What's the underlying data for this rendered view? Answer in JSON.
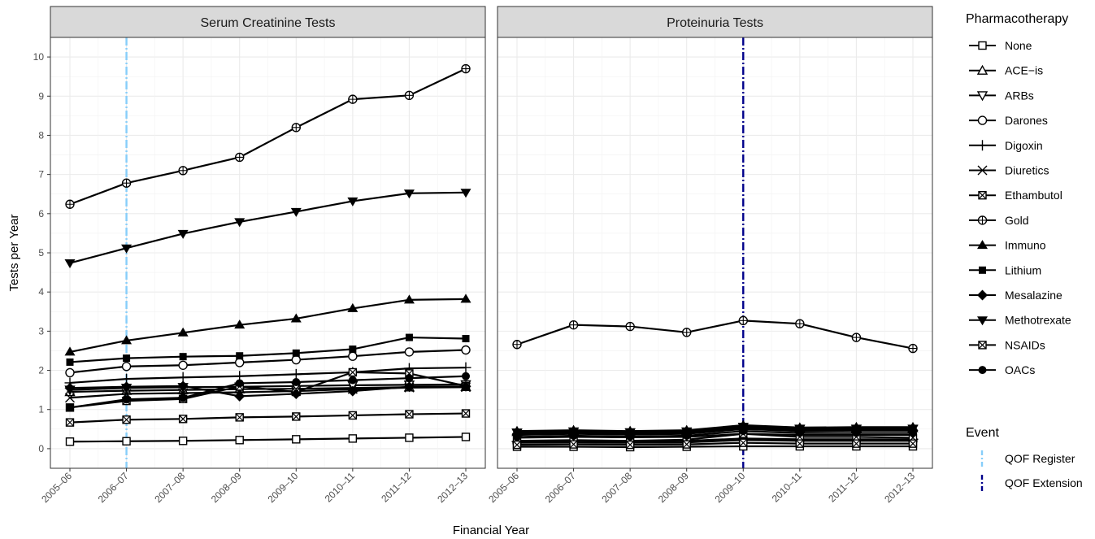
{
  "figure": {
    "ylabel": "Tests per Year",
    "xlabel": "Financial Year",
    "legend_title": "Pharmacotherapy",
    "event_title": "Event"
  },
  "x_categories": [
    "2005–06",
    "2006–07",
    "2007–08",
    "2008–09",
    "2009–10",
    "2010–11",
    "2011–12",
    "2012–13"
  ],
  "y_ticks": [
    0,
    1,
    2,
    3,
    4,
    5,
    6,
    7,
    8,
    9,
    10
  ],
  "ylim": [
    -0.5,
    10.5
  ],
  "colors": {
    "register": "#87CEFA",
    "extension": "#00008B",
    "strip": "#D9D9D9",
    "grid": "#EBEBEB",
    "line": "#000000"
  },
  "legend": [
    {
      "name": "None",
      "shape": "open-square"
    },
    {
      "name": "ACE−is",
      "shape": "open-triangle-up"
    },
    {
      "name": "ARBs",
      "shape": "open-triangle-down"
    },
    {
      "name": "Darones",
      "shape": "open-circle"
    },
    {
      "name": "Digoxin",
      "shape": "plus"
    },
    {
      "name": "Diuretics",
      "shape": "cross"
    },
    {
      "name": "Ethambutol",
      "shape": "square-cross"
    },
    {
      "name": "Gold",
      "shape": "circle-plus"
    },
    {
      "name": "Immuno",
      "shape": "filled-triangle-up"
    },
    {
      "name": "Lithium",
      "shape": "filled-square"
    },
    {
      "name": "Mesalazine",
      "shape": "filled-diamond"
    },
    {
      "name": "Methotrexate",
      "shape": "filled-triangle-down"
    },
    {
      "name": "NSAIDs",
      "shape": "square-x"
    },
    {
      "name": "OACs",
      "shape": "filled-circle"
    }
  ],
  "events": [
    {
      "name": "QOF Register",
      "color": "#87CEFA",
      "panel": 0,
      "x": "2006–07"
    },
    {
      "name": "QOF Extension",
      "color": "#00008B",
      "panel": 1,
      "x": "2009–10"
    }
  ],
  "chart_data": [
    {
      "type": "line",
      "title": "Serum Creatinine Tests",
      "series": [
        {
          "name": "None",
          "values": [
            0.18,
            0.19,
            0.2,
            0.22,
            0.24,
            0.26,
            0.28,
            0.3
          ]
        },
        {
          "name": "ACE−is",
          "values": [
            1.45,
            1.48,
            1.5,
            1.52,
            1.53,
            1.55,
            1.57,
            1.58
          ]
        },
        {
          "name": "ARBs",
          "values": [
            1.5,
            1.55,
            1.57,
            1.58,
            1.6,
            1.62,
            1.63,
            1.64
          ]
        },
        {
          "name": "Darones",
          "values": [
            1.94,
            2.1,
            2.13,
            2.2,
            2.27,
            2.36,
            2.47,
            2.52
          ]
        },
        {
          "name": "Digoxin",
          "values": [
            1.68,
            1.78,
            1.82,
            1.85,
            1.9,
            1.95,
            2.05,
            2.07
          ]
        },
        {
          "name": "Diuretics",
          "values": [
            1.3,
            1.4,
            1.42,
            1.44,
            1.47,
            1.52,
            1.56,
            1.57
          ]
        },
        {
          "name": "Ethambutol",
          "values": [
            1.05,
            1.22,
            1.27,
            1.59,
            1.45,
            1.95,
            1.92,
            1.6
          ]
        },
        {
          "name": "Gold",
          "values": [
            6.24,
            6.78,
            7.1,
            7.44,
            8.2,
            8.92,
            9.02,
            9.7
          ]
        },
        {
          "name": "Immuno",
          "values": [
            2.47,
            2.76,
            2.96,
            3.16,
            3.32,
            3.58,
            3.8,
            3.82
          ]
        },
        {
          "name": "Lithium",
          "values": [
            2.21,
            2.31,
            2.35,
            2.37,
            2.44,
            2.54,
            2.84,
            2.81
          ]
        },
        {
          "name": "Mesalazine",
          "values": [
            1.55,
            1.58,
            1.6,
            1.34,
            1.4,
            1.47,
            1.58,
            1.59
          ]
        },
        {
          "name": "Methotrexate",
          "values": [
            4.74,
            5.12,
            5.49,
            5.79,
            6.05,
            6.32,
            6.52,
            6.54
          ]
        },
        {
          "name": "NSAIDs",
          "values": [
            0.67,
            0.74,
            0.76,
            0.8,
            0.82,
            0.85,
            0.88,
            0.9
          ]
        },
        {
          "name": "OACs",
          "values": [
            1.05,
            1.26,
            1.3,
            1.67,
            1.7,
            1.75,
            1.8,
            1.85
          ]
        }
      ]
    },
    {
      "type": "line",
      "title": "Proteinuria Tests",
      "series": [
        {
          "name": "None",
          "values": [
            0.05,
            0.05,
            0.04,
            0.05,
            0.06,
            0.06,
            0.06,
            0.06
          ]
        },
        {
          "name": "ACE−is",
          "values": [
            0.43,
            0.46,
            0.44,
            0.46,
            0.58,
            0.52,
            0.53,
            0.53
          ]
        },
        {
          "name": "ARBs",
          "values": [
            0.4,
            0.43,
            0.41,
            0.43,
            0.55,
            0.5,
            0.5,
            0.5
          ]
        },
        {
          "name": "Darones",
          "values": [
            0.15,
            0.16,
            0.15,
            0.16,
            0.22,
            0.2,
            0.2,
            0.2
          ]
        },
        {
          "name": "Digoxin",
          "values": [
            0.18,
            0.2,
            0.19,
            0.2,
            0.26,
            0.24,
            0.24,
            0.24
          ]
        },
        {
          "name": "Diuretics",
          "values": [
            0.28,
            0.3,
            0.29,
            0.3,
            0.38,
            0.35,
            0.35,
            0.35
          ]
        },
        {
          "name": "Ethambutol",
          "values": [
            0.2,
            0.22,
            0.2,
            0.23,
            0.38,
            0.3,
            0.3,
            0.28
          ]
        },
        {
          "name": "Gold",
          "values": [
            2.66,
            3.16,
            3.12,
            2.97,
            3.27,
            3.19,
            2.84,
            2.56
          ]
        },
        {
          "name": "Immuno",
          "values": [
            0.45,
            0.47,
            0.45,
            0.47,
            0.6,
            0.54,
            0.55,
            0.55
          ]
        },
        {
          "name": "Lithium",
          "values": [
            0.38,
            0.4,
            0.39,
            0.4,
            0.52,
            0.47,
            0.47,
            0.47
          ]
        },
        {
          "name": "Mesalazine",
          "values": [
            0.35,
            0.38,
            0.36,
            0.38,
            0.5,
            0.45,
            0.46,
            0.46
          ]
        },
        {
          "name": "Methotrexate",
          "values": [
            0.42,
            0.45,
            0.43,
            0.45,
            0.57,
            0.52,
            0.52,
            0.52
          ]
        },
        {
          "name": "NSAIDs",
          "values": [
            0.1,
            0.11,
            0.1,
            0.11,
            0.15,
            0.13,
            0.13,
            0.13
          ]
        },
        {
          "name": "OACs",
          "values": [
            0.3,
            0.33,
            0.31,
            0.33,
            0.45,
            0.4,
            0.4,
            0.4
          ]
        }
      ]
    }
  ]
}
